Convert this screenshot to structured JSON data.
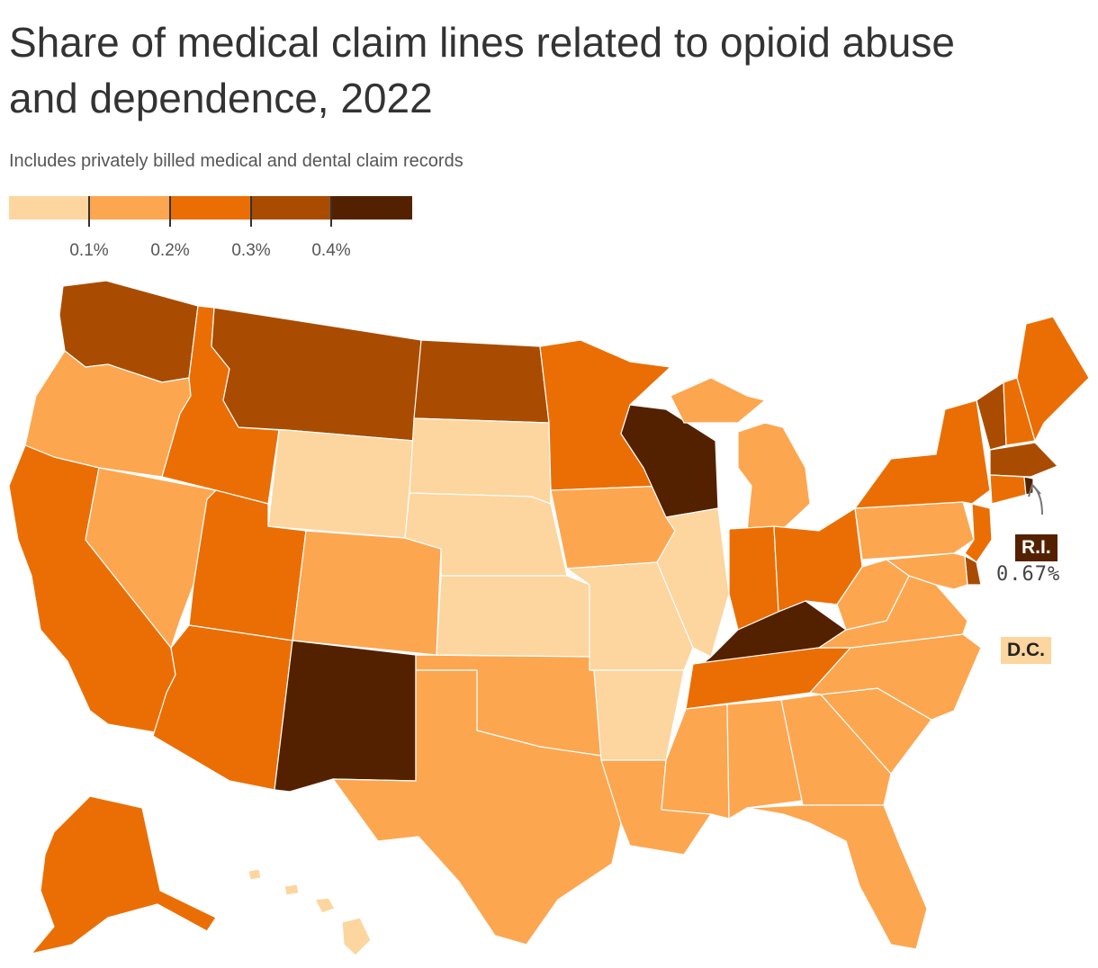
{
  "header": {
    "title": "Share of medical claim lines related to opioid abuse and dependence, 2022",
    "subtitle": "Includes privately billed medical and dental claim records"
  },
  "legend": {
    "colors": [
      "#fdd59e",
      "#fda650",
      "#eb6e04",
      "#a94c01",
      "#542100"
    ],
    "labels": [
      "0.1%",
      "0.2%",
      "0.3%",
      "0.4%"
    ]
  },
  "states": [
    {
      "abbr": "WA",
      "level": 3
    },
    {
      "abbr": "OR",
      "level": 1
    },
    {
      "abbr": "CA",
      "level": 2
    },
    {
      "abbr": "NV",
      "level": 1
    },
    {
      "abbr": "ID",
      "level": 2
    },
    {
      "abbr": "MT",
      "level": 3
    },
    {
      "abbr": "WY",
      "level": 0
    },
    {
      "abbr": "UT",
      "level": 2
    },
    {
      "abbr": "AZ",
      "level": 2
    },
    {
      "abbr": "CO",
      "level": 1
    },
    {
      "abbr": "NM",
      "level": 4
    },
    {
      "abbr": "ND",
      "level": 3
    },
    {
      "abbr": "SD",
      "level": 0
    },
    {
      "abbr": "NE",
      "level": 0
    },
    {
      "abbr": "KS",
      "level": 0
    },
    {
      "abbr": "OK",
      "level": 1
    },
    {
      "abbr": "TX",
      "level": 1
    },
    {
      "abbr": "MN",
      "level": 2
    },
    {
      "abbr": "IA",
      "level": 1
    },
    {
      "abbr": "MO",
      "level": 0
    },
    {
      "abbr": "AR",
      "level": 0
    },
    {
      "abbr": "LA",
      "level": 1
    },
    {
      "abbr": "WI",
      "level": 4
    },
    {
      "abbr": "IL",
      "level": 0
    },
    {
      "abbr": "MI",
      "level": 1
    },
    {
      "abbr": "IN",
      "level": 2
    },
    {
      "abbr": "OH",
      "level": 2
    },
    {
      "abbr": "KY",
      "level": 4
    },
    {
      "abbr": "TN",
      "level": 2
    },
    {
      "abbr": "MS",
      "level": 1
    },
    {
      "abbr": "AL",
      "level": 1
    },
    {
      "abbr": "GA",
      "level": 1
    },
    {
      "abbr": "FL",
      "level": 1
    },
    {
      "abbr": "SC",
      "level": 1
    },
    {
      "abbr": "NC",
      "level": 1
    },
    {
      "abbr": "VA",
      "level": 1
    },
    {
      "abbr": "WV",
      "level": 1
    },
    {
      "abbr": "PA",
      "level": 1
    },
    {
      "abbr": "NY",
      "level": 2
    },
    {
      "abbr": "VT",
      "level": 3
    },
    {
      "abbr": "NH",
      "level": 2
    },
    {
      "abbr": "ME",
      "level": 2
    },
    {
      "abbr": "MA",
      "level": 3
    },
    {
      "abbr": "CT",
      "level": 2
    },
    {
      "abbr": "RI",
      "level": 4
    },
    {
      "abbr": "NJ",
      "level": 2
    },
    {
      "abbr": "DE",
      "level": 3
    },
    {
      "abbr": "MD",
      "level": 1
    },
    {
      "abbr": "AK",
      "level": 2
    },
    {
      "abbr": "HI",
      "level": 0
    },
    {
      "abbr": "DC",
      "level": 0
    }
  ],
  "callouts": {
    "ri": {
      "label": "R.I.",
      "value": "0.67%"
    },
    "dc": {
      "label": "D.C."
    }
  }
}
